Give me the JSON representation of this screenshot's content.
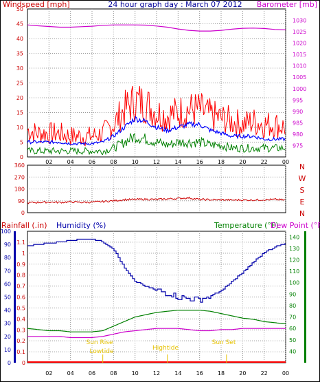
{
  "header": {
    "left_label": "Windspeed [mph]",
    "title": "24 hour graph day : March 07 2012",
    "right_label": "Barometer [mb]"
  },
  "lower_header": {
    "rainfall_label": "Rainfall (.in)",
    "humidity_label": "Humidity (%)",
    "temperature_label": "Temperature (°F)",
    "dewpoint_label": "Dew Point (°F)"
  },
  "events": {
    "sunrise": "Sun Rise",
    "lowtide": "Lowtide",
    "hightide": "Hightide",
    "sunset": "Sun Set"
  },
  "colors": {
    "wind": "#ff0000",
    "avg_wind": "#0000ff",
    "min_wind": "#008000",
    "barometer": "#cc00cc",
    "direction": "#cc0000",
    "humidity": "#0000aa",
    "temperature": "#008000",
    "dewpoint": "#cc00cc",
    "rain": "#ff0000",
    "events": "#e6c200",
    "grid": "#999999"
  },
  "chart_data": [
    {
      "type": "line",
      "name": "wind_barometer_panel",
      "x_ticks": [
        "02",
        "04",
        "06",
        "08",
        "10",
        "12",
        "14",
        "16",
        "18",
        "20",
        "22",
        "00"
      ],
      "ylim_left": [
        0,
        50
      ],
      "y_ticks_left": [
        0,
        5,
        10,
        15,
        20,
        25,
        30,
        35,
        40,
        45,
        50
      ],
      "ylim_right": [
        970,
        1035
      ],
      "y_ticks_right": [
        975,
        980,
        985,
        990,
        995,
        1000,
        1005,
        1010,
        1015,
        1020,
        1025,
        1030
      ],
      "hours": [
        0,
        1,
        2,
        3,
        4,
        5,
        6,
        7,
        8,
        9,
        10,
        11,
        12,
        13,
        14,
        15,
        16,
        17,
        18,
        19,
        20,
        21,
        22,
        23,
        24
      ],
      "series": [
        {
          "key": "gust",
          "values": [
            9,
            8,
            8,
            8,
            7,
            7,
            7,
            8,
            11,
            16,
            19,
            18,
            15,
            14,
            15,
            16,
            16,
            14,
            13,
            12,
            11,
            12,
            11,
            11,
            10
          ]
        },
        {
          "key": "average",
          "values": [
            5,
            5,
            5,
            5,
            4.5,
            4.5,
            4.5,
            5,
            7,
            10,
            13,
            12,
            10,
            9,
            10,
            11,
            11,
            9,
            8,
            7,
            7,
            7,
            6,
            6,
            6
          ]
        },
        {
          "key": "minimum",
          "values": [
            2,
            2,
            2,
            2,
            2,
            2,
            2,
            2,
            3,
            5,
            7,
            6,
            5,
            4,
            5,
            5,
            5,
            4,
            4,
            3,
            3,
            3,
            3,
            3,
            3
          ]
        },
        {
          "key": "barometer",
          "values": [
            1028,
            1027.6,
            1027.3,
            1027,
            1027,
            1027.2,
            1027.4,
            1027.8,
            1028,
            1028,
            1028,
            1027.9,
            1027.5,
            1027,
            1026.2,
            1025.6,
            1025.3,
            1025.3,
            1025.6,
            1026.1,
            1026.5,
            1026.6,
            1026.4,
            1026,
            1025.8
          ]
        }
      ]
    },
    {
      "type": "line",
      "name": "wind_direction_panel",
      "ylim_left": [
        0,
        360
      ],
      "y_ticks_left": [
        0,
        90,
        180,
        270,
        360
      ],
      "compass_labels": [
        "N",
        "W",
        "S",
        "E",
        "N"
      ],
      "hours": [
        0,
        1,
        2,
        3,
        4,
        5,
        6,
        7,
        8,
        9,
        10,
        11,
        12,
        13,
        14,
        15,
        16,
        17,
        18,
        19,
        20,
        21,
        22,
        23,
        24
      ],
      "series": [
        {
          "key": "direction",
          "values": [
            75,
            78,
            80,
            78,
            82,
            78,
            80,
            84,
            90,
            98,
            100,
            102,
            100,
            104,
            108,
            112,
            100,
            98,
            98,
            96,
            96,
            96,
            98,
            100,
            96
          ]
        }
      ]
    },
    {
      "type": "line",
      "name": "humidity_temperature_panel",
      "x_ticks": [
        "02",
        "04",
        "06",
        "08",
        "10",
        "12",
        "14",
        "16",
        "18",
        "20",
        "22",
        "00"
      ],
      "ylim_humidity": [
        0,
        100
      ],
      "y_ticks_humidity": [
        0,
        10,
        20,
        30,
        40,
        50,
        60,
        70,
        80,
        90,
        100
      ],
      "ylim_rain": [
        0,
        1.2
      ],
      "y_ticks_rain": [
        0,
        0.1,
        0.2,
        0.3,
        0.4,
        0.5,
        0.6,
        0.7,
        0.8,
        0.9,
        1,
        1.1
      ],
      "ylim_temp": [
        30,
        145
      ],
      "y_ticks_temp": [
        40,
        50,
        60,
        70,
        80,
        90,
        100,
        110,
        120,
        130,
        140
      ],
      "hours": [
        0,
        1,
        2,
        3,
        4,
        5,
        6,
        7,
        8,
        9,
        10,
        11,
        12,
        13,
        14,
        15,
        16,
        17,
        18,
        19,
        20,
        21,
        22,
        23,
        24
      ],
      "series": [
        {
          "key": "humidity",
          "values": [
            89,
            90,
            91,
            92,
            93,
            94,
            94,
            92,
            86,
            72,
            62,
            58,
            55,
            53,
            50,
            49,
            48,
            51,
            55,
            62,
            69,
            77,
            84,
            88,
            91
          ]
        },
        {
          "key": "temperature",
          "values": [
            60,
            59,
            58,
            58,
            57,
            57,
            57,
            58,
            62,
            66,
            70,
            72,
            74,
            75,
            76,
            76,
            76,
            75,
            73,
            71,
            69,
            68,
            66,
            65,
            64
          ]
        },
        {
          "key": "dewpoint",
          "values": [
            53,
            53,
            53,
            53,
            52,
            52,
            52,
            53,
            55,
            57,
            58,
            59,
            60,
            60,
            60,
            59,
            58,
            58,
            59,
            59,
            60,
            60,
            60,
            60,
            60
          ]
        }
      ]
    }
  ]
}
